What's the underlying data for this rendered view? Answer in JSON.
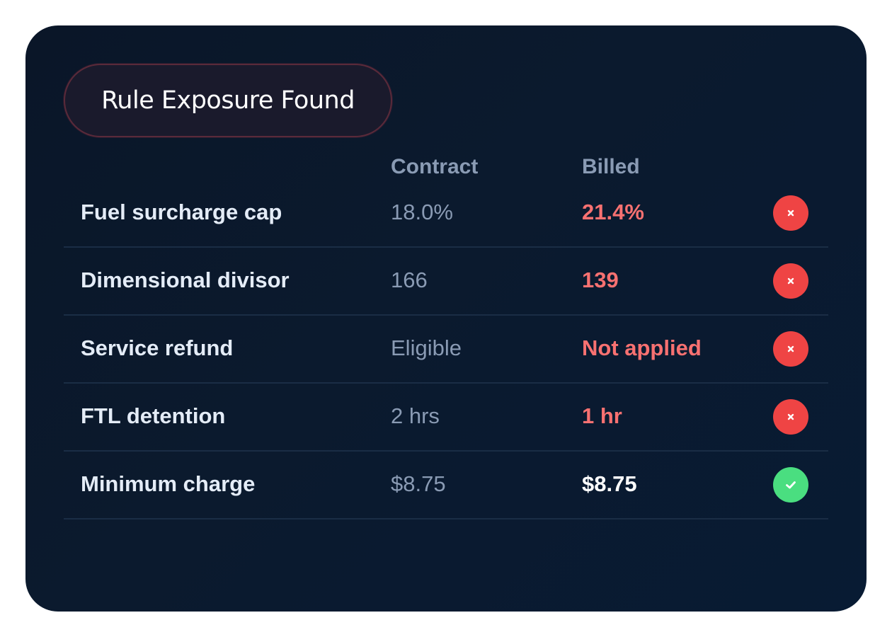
{
  "badge": {
    "label": "Rule Exposure Found"
  },
  "columns": {
    "contract": "Contract",
    "billed": "Billed"
  },
  "colors": {
    "mismatch": "#f87171",
    "match": "#ffffff",
    "fail_icon_bg": "#ef4444",
    "pass_icon_bg": "#4ade80"
  },
  "rows": [
    {
      "label": "Fuel surcharge cap",
      "contract": "18.0%",
      "billed": "21.4%",
      "status": "mismatch",
      "icon": "x-icon"
    },
    {
      "label": "Dimensional divisor",
      "contract": "166",
      "billed": "139",
      "status": "mismatch",
      "icon": "x-icon"
    },
    {
      "label": "Service refund",
      "contract": "Eligible",
      "billed": "Not applied",
      "status": "mismatch",
      "icon": "x-icon"
    },
    {
      "label": "FTL detention",
      "contract": "2 hrs",
      "billed": "1 hr",
      "status": "mismatch",
      "icon": "x-icon"
    },
    {
      "label": "Minimum charge",
      "contract": "$8.75",
      "billed": "$8.75",
      "status": "match",
      "icon": "check-icon"
    }
  ]
}
